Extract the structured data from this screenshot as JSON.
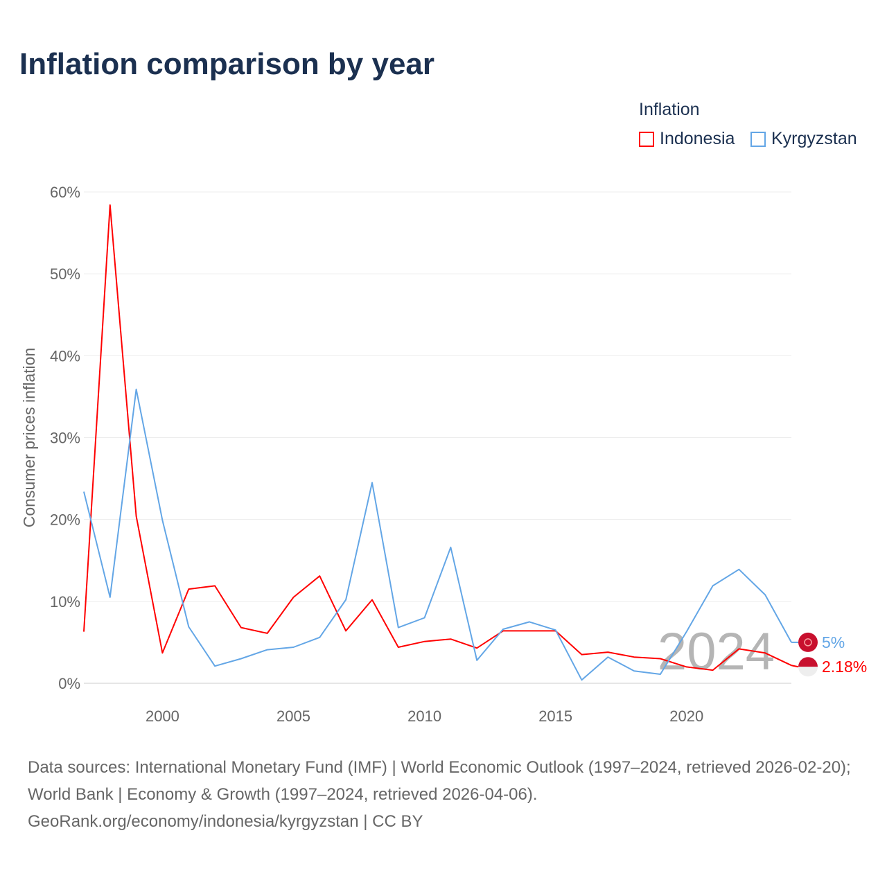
{
  "chart_data": {
    "type": "line",
    "title": "Inflation comparison by year",
    "xlabel": "",
    "ylabel": "Consumer prices inflation",
    "xlim": [
      1997,
      2024
    ],
    "ylim": [
      0,
      60
    ],
    "x_ticks": [
      2000,
      2005,
      2010,
      2015,
      2020
    ],
    "y_ticks": [
      0,
      10,
      20,
      30,
      40,
      50,
      60
    ],
    "y_tick_labels": [
      "0%",
      "10%",
      "20%",
      "30%",
      "40%",
      "50%",
      "60%"
    ],
    "grid": true,
    "legend_title": "Inflation",
    "legend_position": "top-right",
    "watermark_year": "2024",
    "x": [
      1997,
      1998,
      1999,
      2000,
      2001,
      2002,
      2003,
      2004,
      2005,
      2006,
      2007,
      2008,
      2009,
      2010,
      2011,
      2012,
      2013,
      2014,
      2015,
      2016,
      2017,
      2018,
      2019,
      2020,
      2021,
      2022,
      2023,
      2024
    ],
    "series": [
      {
        "name": "Indonesia",
        "color": "#ff0000",
        "end_label": "2.18%",
        "values": [
          6.3,
          58.4,
          20.4,
          3.7,
          11.5,
          11.9,
          6.8,
          6.1,
          10.5,
          13.1,
          6.4,
          10.2,
          4.4,
          5.1,
          5.4,
          4.3,
          6.4,
          6.4,
          6.4,
          3.5,
          3.8,
          3.2,
          3.0,
          2.0,
          1.6,
          4.2,
          3.7,
          2.18
        ]
      },
      {
        "name": "Kyrgyzstan",
        "color": "#63a6e6",
        "end_label": "5%",
        "values": [
          23.4,
          10.5,
          35.9,
          19.9,
          6.9,
          2.1,
          3.0,
          4.1,
          4.4,
          5.6,
          10.2,
          24.5,
          6.8,
          8.0,
          16.6,
          2.8,
          6.6,
          7.5,
          6.5,
          0.4,
          3.2,
          1.5,
          1.1,
          6.3,
          11.9,
          13.9,
          10.8,
          5.0
        ]
      }
    ]
  },
  "footer": {
    "sources": "Data sources: International Monetary Fund (IMF) | World Economic Outlook (1997–2024, retrieved 2026-02-20); World Bank | Economy & Growth (1997–2024, retrieved 2026-04-06).",
    "credit": "GeoRank.org/economy/indonesia/kyrgyzstan | CC BY"
  }
}
